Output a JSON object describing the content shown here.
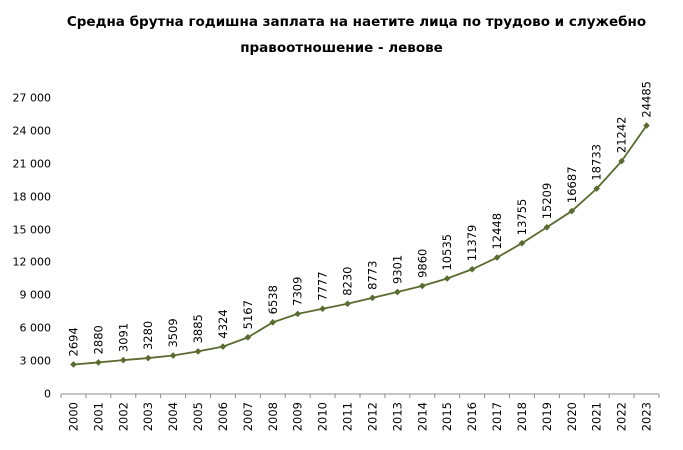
{
  "chart_data": {
    "type": "line",
    "title": "Средна брутна годишна заплата на наетите лица по трудово и служебно правоотношение - левове",
    "title_line1": "Средна брутна годишна заплата на наетите лица по трудово и служебно",
    "title_line2": "правоотношение - левове",
    "xlabel": "",
    "ylabel": "",
    "ylim": [
      0,
      27000
    ],
    "yticks": [
      "0",
      "3 000",
      "6 000",
      "9 000",
      "12 000",
      "15 000",
      "18 000",
      "21 000",
      "24 000",
      "27 000"
    ],
    "ytick_values": [
      0,
      3000,
      6000,
      9000,
      12000,
      15000,
      18000,
      21000,
      24000,
      27000
    ],
    "grid": false,
    "legend": null,
    "line_color": "#5a6b2f",
    "categories": [
      "2000",
      "2001",
      "2002",
      "2003",
      "2004",
      "2005",
      "2006",
      "2007",
      "2008",
      "2009",
      "2010",
      "2011",
      "2012",
      "2013",
      "2014",
      "2015",
      "2016",
      "2017",
      "2018",
      "2019",
      "2020",
      "2021",
      "2022",
      "2023"
    ],
    "values": [
      2694,
      2880,
      3091,
      3280,
      3509,
      3885,
      4324,
      5167,
      6538,
      7309,
      7777,
      8230,
      8773,
      9301,
      9860,
      10535,
      11379,
      12448,
      13755,
      15209,
      16687,
      18733,
      21242,
      24485
    ],
    "data_labels": true
  }
}
